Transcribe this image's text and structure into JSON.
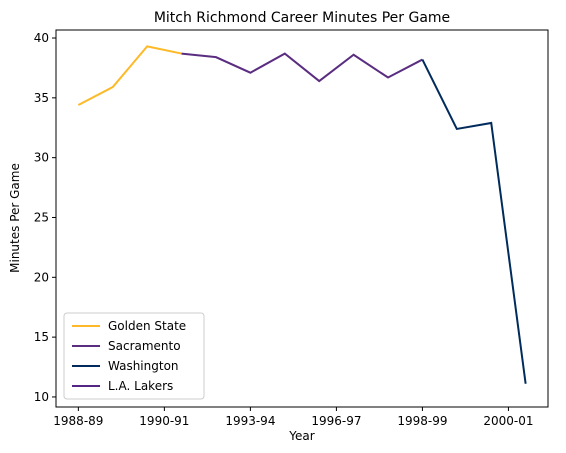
{
  "chart_data": {
    "type": "line",
    "title": "Mitch Richmond Career Minutes Per Game",
    "x_label": "Year",
    "y_label": "Minutes Per Game",
    "xlim": [
      -0.65,
      13.65
    ],
    "xticks": [
      {
        "value": 0,
        "label": "1988-89"
      },
      {
        "value": 2.5,
        "label": "1990-91"
      },
      {
        "value": 5,
        "label": "1993-94"
      },
      {
        "value": 7.5,
        "label": "1996-97"
      },
      {
        "value": 10,
        "label": "1998-99"
      },
      {
        "value": 12.5,
        "label": "2000-01"
      }
    ],
    "ylim": [
      9.16,
      40.67
    ],
    "yticks": [
      10,
      15,
      20,
      25,
      30,
      35,
      40
    ],
    "legend": "lower left",
    "series": [
      {
        "name": "Golden State",
        "color": "#fdb927",
        "x": [
          0,
          1,
          2,
          3
        ],
        "values": [
          34.4,
          35.9,
          39.3,
          38.7
        ]
      },
      {
        "name": "Sacramento",
        "color": "#5a2d81",
        "x": [
          3,
          4,
          5,
          6,
          7,
          8,
          9,
          10
        ],
        "values": [
          38.7,
          38.4,
          37.1,
          38.7,
          36.4,
          38.6,
          36.7,
          38.2
        ]
      },
      {
        "name": "Washington",
        "color": "#002b5c",
        "x": [
          10,
          11,
          12,
          13
        ],
        "values": [
          38.2,
          32.4,
          32.9,
          11.1
        ]
      },
      {
        "name": "L.A. Lakers",
        "color": "#552583",
        "x": [
          13
        ],
        "values": [
          11.1
        ]
      }
    ]
  }
}
